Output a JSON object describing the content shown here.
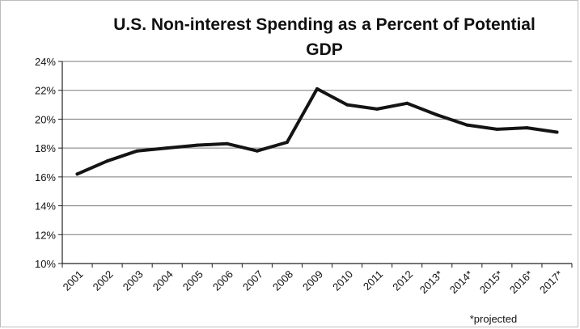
{
  "chart_data": {
    "type": "line",
    "title_line1": "U.S. Non-interest Spending as a Percent of Potential",
    "title_line2": "GDP",
    "xlabel": "",
    "ylabel": "",
    "categories": [
      "2001",
      "2002",
      "2003",
      "2004",
      "2005",
      "2006",
      "2007",
      "2008",
      "2009",
      "2010",
      "2011",
      "2012",
      "2013*",
      "2014*",
      "2015*",
      "2016*",
      "2017*"
    ],
    "series": [
      {
        "values": [
          16.2,
          17.1,
          17.8,
          18.0,
          18.2,
          18.3,
          17.8,
          18.4,
          22.1,
          21.0,
          20.7,
          21.1,
          20.3,
          19.6,
          19.3,
          19.4,
          19.1
        ]
      }
    ],
    "ylim": [
      10,
      24
    ],
    "yticks": [
      10,
      12,
      14,
      16,
      18,
      20,
      22,
      24
    ],
    "ytick_labels": [
      "10%",
      "12%",
      "14%",
      "16%",
      "18%",
      "20%",
      "22%",
      "24%"
    ],
    "grid": true,
    "legend": "none",
    "note": "*projected",
    "colors": {
      "line": "#141414",
      "grid": "#7a7a7a",
      "axis": "#222222"
    }
  }
}
